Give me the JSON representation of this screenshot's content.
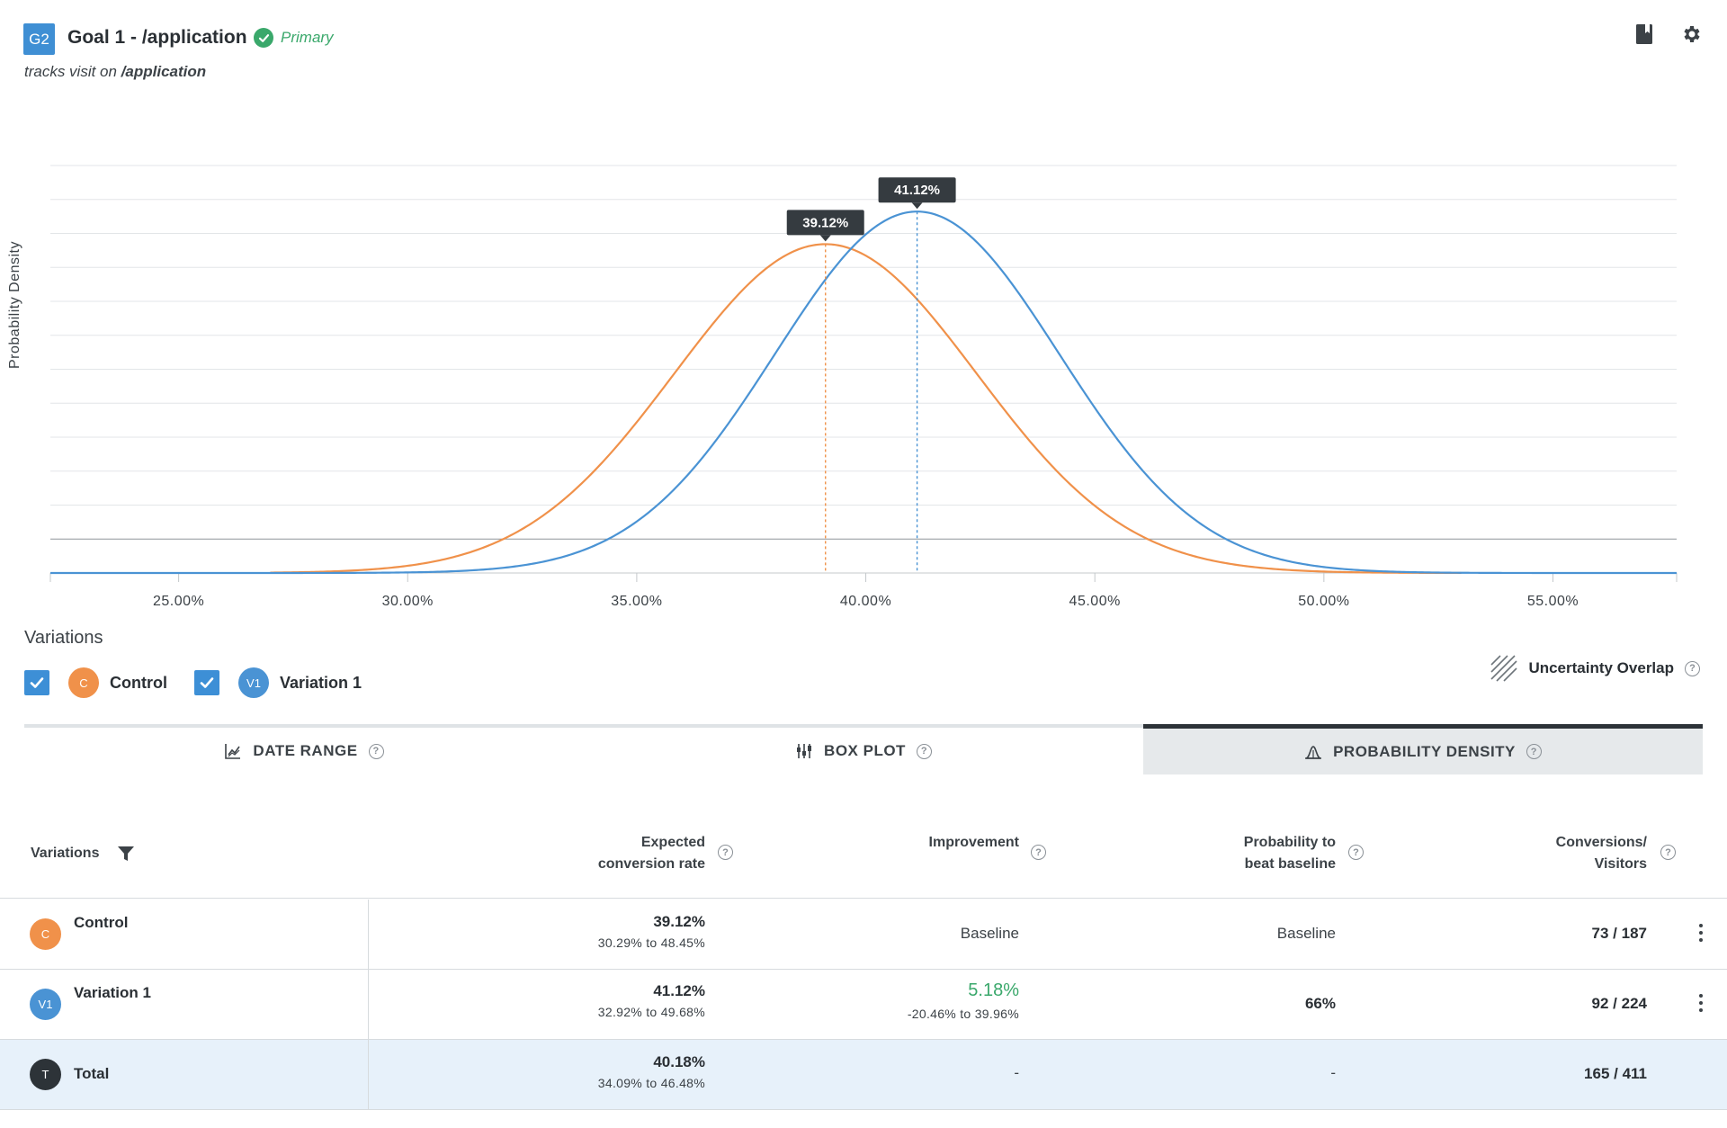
{
  "header": {
    "badge": "G2",
    "title": "Goal 1 - /application",
    "status": "Primary",
    "subtitle_prefix": "tracks visit on ",
    "subtitle_path": "/application"
  },
  "chart_data": {
    "type": "line",
    "ylabel": "Probability Density",
    "xlabel": "",
    "xlim": [
      22.2,
      57.7
    ],
    "x_ticks": [
      "25.00%",
      "30.00%",
      "35.00%",
      "40.00%",
      "45.00%",
      "50.00%",
      "55.00%"
    ],
    "x_tick_values": [
      25,
      30,
      35,
      40,
      45,
      50,
      55
    ],
    "grid": true,
    "series": [
      {
        "name": "Control",
        "color": "#f0914a",
        "mean": 39.12,
        "sd": 3.3,
        "peak": 0.807,
        "range": [
          27.0,
          53.0
        ],
        "peak_label": "39.12%"
      },
      {
        "name": "Variation 1",
        "color": "#4a93d4",
        "mean": 41.12,
        "sd": 3.1,
        "peak": 0.887,
        "range": [
          22.2,
          57.7
        ],
        "peak_label": "41.12%"
      }
    ]
  },
  "legend": {
    "title": "Variations",
    "items": [
      {
        "avatar": "C",
        "label": "Control",
        "color": "#f0914a"
      },
      {
        "avatar": "V1",
        "label": "Variation 1",
        "color": "#4a93d4"
      }
    ],
    "uncertainty_label": "Uncertainty Overlap"
  },
  "tabs": [
    {
      "label": "DATE RANGE",
      "icon": "line-chart-icon"
    },
    {
      "label": "BOX PLOT",
      "icon": "box-plot-icon"
    },
    {
      "label": "PROBABILITY DENSITY",
      "icon": "density-icon"
    }
  ],
  "table": {
    "headers": {
      "variations": "Variations",
      "expected_1": "Expected",
      "expected_2": "conversion rate",
      "improvement": "Improvement",
      "prob_1": "Probability to",
      "prob_2": "beat baseline",
      "conv_1": "Conversions/",
      "conv_2": "Visitors"
    },
    "rows": [
      {
        "avatar": "C",
        "color": "#f0914a",
        "name": "Control",
        "rate": "39.12%",
        "rate_range": "30.29% to 48.45%",
        "improvement": "Baseline",
        "improvement_range": "",
        "probability": "Baseline",
        "conversions": "73 / 187"
      },
      {
        "avatar": "V1",
        "color": "#4a93d4",
        "name": "Variation 1",
        "rate": "41.12%",
        "rate_range": "32.92% to 49.68%",
        "improvement": "5.18%",
        "improvement_range": "-20.46% to 39.96%",
        "probability": "66%",
        "conversions": "92 / 224"
      },
      {
        "avatar": "T",
        "color": "#2d3338",
        "name": "Total",
        "rate": "40.18%",
        "rate_range": "34.09% to 46.48%",
        "improvement": "-",
        "improvement_range": "",
        "probability": "-",
        "conversions": "165 / 411"
      }
    ]
  }
}
